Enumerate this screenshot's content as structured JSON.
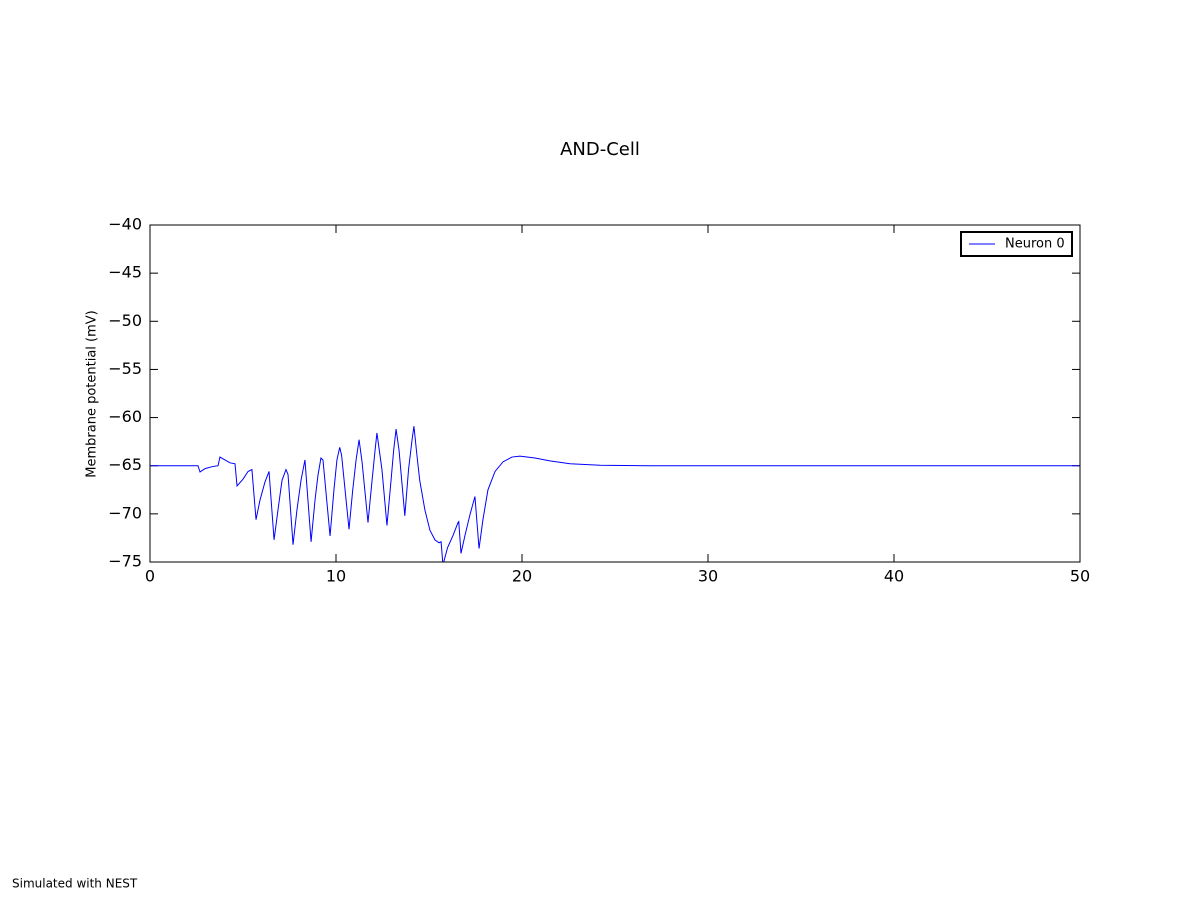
{
  "chart_data": {
    "type": "line",
    "title": "AND-Cell",
    "y_label": "Membrane potential (mV)",
    "annotation": "Simulated with NEST",
    "x": [
      0,
      2.58,
      2.69,
      2.96,
      3.33,
      3.66,
      3.76,
      4.03,
      4.3,
      4.57,
      4.68,
      5.0,
      5.27,
      5.48,
      5.7,
      5.91,
      6.18,
      6.4,
      6.67,
      6.88,
      7.1,
      7.31,
      7.42,
      7.69,
      7.9,
      8.12,
      8.33,
      8.66,
      8.87,
      9.03,
      9.19,
      9.3,
      9.68,
      9.89,
      10.05,
      10.2,
      10.3,
      10.7,
      10.9,
      11.08,
      11.24,
      11.4,
      11.72,
      11.94,
      12.1,
      12.2,
      12.47,
      12.74,
      12.96,
      13.1,
      13.23,
      13.39,
      13.7,
      13.9,
      14.09,
      14.19,
      14.35,
      14.5,
      14.78,
      15.05,
      15.32,
      15.54,
      15.65,
      15.75,
      16.0,
      16.3,
      16.56,
      16.6,
      16.72,
      16.94,
      17.2,
      17.47,
      17.69,
      17.9,
      18.17,
      18.55,
      18.98,
      19.46,
      19.89,
      20.7,
      21.5,
      22.58,
      24.2,
      26.9,
      50
    ],
    "series": [
      {
        "name": "Neuron 0",
        "color": "#0000ff",
        "values": [
          -65,
          -65,
          -65.65,
          -65.3,
          -65.1,
          -65,
          -64.1,
          -64.4,
          -64.7,
          -64.8,
          -67.1,
          -66.4,
          -65.6,
          -65.4,
          -70.6,
          -68.6,
          -66.7,
          -65.6,
          -72.7,
          -69.6,
          -66.5,
          -65.4,
          -65.9,
          -73.2,
          -69.6,
          -66.5,
          -64.4,
          -72.9,
          -68.6,
          -66,
          -64.2,
          -64.4,
          -72.3,
          -67.5,
          -64.4,
          -63.1,
          -63.9,
          -71.6,
          -67.5,
          -64.4,
          -62.3,
          -64.6,
          -70.9,
          -66.5,
          -63.4,
          -61.6,
          -65.4,
          -71.2,
          -66.5,
          -63.4,
          -61.2,
          -63.4,
          -70.2,
          -65.4,
          -62.3,
          -60.9,
          -63.9,
          -66.5,
          -69.6,
          -71.7,
          -72.7,
          -73,
          -72.9,
          -75.3,
          -73.5,
          -72.2,
          -70.9,
          -70.8,
          -74.1,
          -72.2,
          -70.1,
          -68.2,
          -73.6,
          -70.6,
          -67.5,
          -65.6,
          -64.6,
          -64.1,
          -64.0,
          -64.2,
          -64.5,
          -64.8,
          -64.95,
          -65,
          -65
        ]
      }
    ],
    "xlim": [
      0,
      50
    ],
    "xticks": [
      0,
      10,
      20,
      30,
      40,
      50
    ],
    "ylim": [
      -75,
      -40
    ],
    "yticks": [
      {
        "value": -40,
        "label": "−40"
      },
      {
        "value": -45,
        "label": "−45"
      },
      {
        "value": -50,
        "label": "−50"
      },
      {
        "value": -55,
        "label": "−55"
      },
      {
        "value": -60,
        "label": "−60"
      },
      {
        "value": -65,
        "label": "−65"
      },
      {
        "value": -70,
        "label": "−70"
      },
      {
        "value": -75,
        "label": "−75"
      }
    ],
    "legend": "upper right"
  }
}
